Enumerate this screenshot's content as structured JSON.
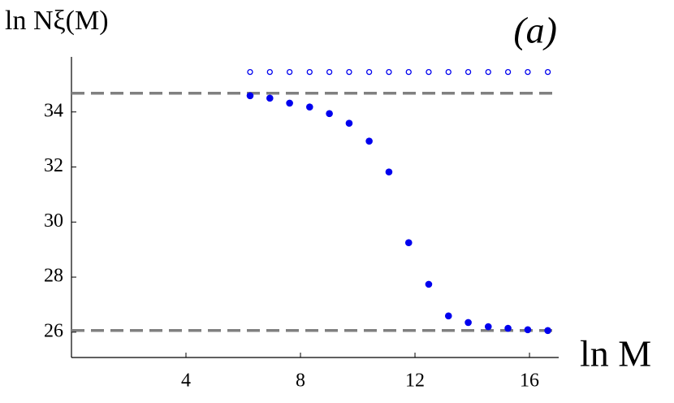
{
  "chart_data": {
    "type": "scatter",
    "y_label": "ln Nξ(M)",
    "x_label": "ln M",
    "annotation": "(a)",
    "xlim": [
      0,
      17.02
    ],
    "ylim": [
      25.08,
      36.0
    ],
    "xticks": [
      4,
      8,
      12,
      16
    ],
    "yticks": [
      26,
      28,
      30,
      32,
      34
    ],
    "hlines": [
      34.68,
      26.06
    ],
    "hline_color": "#808080",
    "x": [
      6.24,
      6.93,
      7.62,
      8.32,
      9.01,
      9.7,
      10.4,
      11.09,
      11.78,
      12.48,
      13.17,
      13.86,
      14.56,
      15.25,
      15.94,
      16.64
    ],
    "series": [
      {
        "color": "#0000ee",
        "marker": "open",
        "values": [
          35.45,
          35.45,
          35.45,
          35.45,
          35.45,
          35.45,
          35.45,
          35.45,
          35.45,
          35.45,
          35.45,
          35.45,
          35.45,
          35.45,
          35.45,
          35.45
        ]
      },
      {
        "color": "#0000ee",
        "marker": "filled",
        "values": [
          34.59,
          34.5,
          34.32,
          34.18,
          33.94,
          33.59,
          32.94,
          31.82,
          29.25,
          27.74,
          26.59,
          26.35,
          26.2,
          26.14,
          26.09,
          26.06
        ]
      }
    ]
  }
}
